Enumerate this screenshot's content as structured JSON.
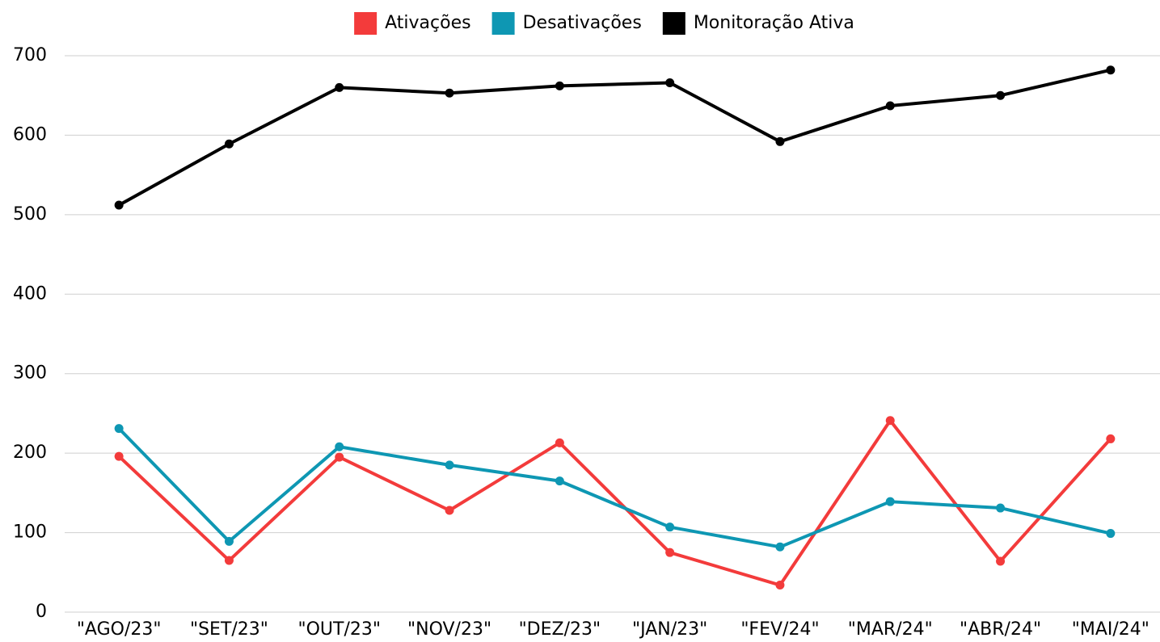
{
  "chart_data": {
    "type": "line",
    "categories": [
      "\"AGO/23\"",
      "\"SET/23\"",
      "\"OUT/23\"",
      "\"NOV/23\"",
      "\"DEZ/23\"",
      "\"JAN/23\"",
      "\"FEV/24\"",
      "\"MAR/24\"",
      "\"ABR/24\"",
      "\"MAI/24\""
    ],
    "series": [
      {
        "name": "Ativações",
        "color": "#f33b3b",
        "values": [
          196,
          65,
          195,
          128,
          213,
          75,
          34,
          241,
          64,
          218
        ]
      },
      {
        "name": "Desativações",
        "color": "#0e97b3",
        "values": [
          231,
          89,
          208,
          185,
          165,
          107,
          82,
          139,
          131,
          99
        ]
      },
      {
        "name": "Monitoração Ativa",
        "color": "#000000",
        "values": [
          512,
          589,
          660,
          653,
          662,
          666,
          592,
          637,
          650,
          682
        ]
      }
    ],
    "ylim": [
      0,
      700
    ],
    "yticks": [
      0,
      100,
      200,
      300,
      400,
      500,
      600,
      700
    ],
    "grid": true,
    "legend": "top"
  }
}
